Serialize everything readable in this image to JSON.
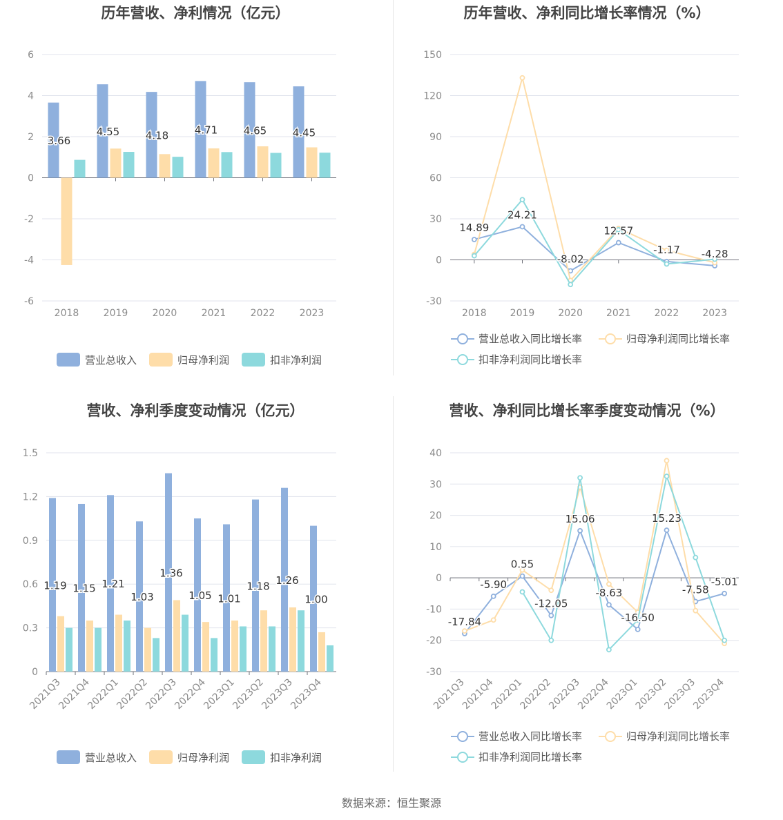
{
  "chart_data": [
    {
      "type": "bar",
      "title": "历年营收、净利情况（亿元）",
      "unit": "亿元",
      "categories": [
        "2018",
        "2019",
        "2020",
        "2021",
        "2022",
        "2023"
      ],
      "ylim": [
        -6,
        6
      ],
      "yticks": [
        -6,
        -4,
        -2,
        0,
        2,
        4,
        6
      ],
      "grid": true,
      "legend_position": "bottom",
      "series": [
        {
          "name": "营业总收入",
          "color": "#8fb0dd",
          "labeled": true,
          "values": [
            3.66,
            4.55,
            4.18,
            4.71,
            4.65,
            4.45
          ]
        },
        {
          "name": "归母净利润",
          "color": "#fedda9",
          "labeled": false,
          "values": [
            -4.25,
            1.42,
            1.15,
            1.43,
            1.53,
            1.48
          ]
        },
        {
          "name": "扣非净利润",
          "color": "#8dd9dd",
          "labeled": false,
          "values": [
            0.87,
            1.26,
            1.02,
            1.25,
            1.21,
            1.22
          ]
        }
      ],
      "data_labels": [
        "3.66",
        "4.55",
        "4.18",
        "4.71",
        "4.65",
        "4.45"
      ]
    },
    {
      "type": "line",
      "title": "历年营收、净利同比增长率情况（%）",
      "unit": "%",
      "categories": [
        "2018",
        "2019",
        "2020",
        "2021",
        "2022",
        "2023"
      ],
      "ylim": [
        -30,
        150
      ],
      "yticks": [
        -30,
        0,
        30,
        60,
        90,
        120,
        150
      ],
      "grid": true,
      "legend_position": "bottom",
      "series": [
        {
          "name": "营业总收入同比增长率",
          "color": "#8fb0dd",
          "labeled": true,
          "values": [
            14.89,
            24.21,
            -8.02,
            12.57,
            -1.17,
            -4.28
          ]
        },
        {
          "name": "归母净利润同比增长率",
          "color": "#fedda9",
          "labeled": false,
          "values": [
            4.0,
            133.0,
            -15.0,
            23.0,
            7.0,
            -2.0
          ]
        },
        {
          "name": "扣非净利润同比增长率",
          "color": "#8dd9dd",
          "labeled": false,
          "values": [
            3.0,
            44.0,
            -18.0,
            22.0,
            -3.0,
            0.5
          ]
        }
      ],
      "data_labels": [
        "14.89",
        "24.21",
        "-8.02",
        "12.57",
        "-1.17",
        "-4.28"
      ]
    },
    {
      "type": "bar",
      "title": "营收、净利季度变动情况（亿元）",
      "unit": "亿元",
      "categories": [
        "2021Q3",
        "2021Q4",
        "2022Q1",
        "2022Q2",
        "2022Q3",
        "2022Q4",
        "2023Q1",
        "2023Q2",
        "2023Q3",
        "2023Q4"
      ],
      "ylim": [
        0,
        1.5
      ],
      "yticks": [
        "0",
        "0.3",
        "0.6",
        "0.9",
        "1.2",
        "1.5"
      ],
      "grid": true,
      "legend_position": "bottom",
      "series": [
        {
          "name": "营业总收入",
          "color": "#8fb0dd",
          "labeled": true,
          "values": [
            1.19,
            1.15,
            1.21,
            1.03,
            1.36,
            1.05,
            1.01,
            1.18,
            1.26,
            1.0
          ]
        },
        {
          "name": "归母净利润",
          "color": "#fedda9",
          "labeled": false,
          "values": [
            0.38,
            0.35,
            0.39,
            0.3,
            0.49,
            0.34,
            0.35,
            0.42,
            0.44,
            0.27
          ]
        },
        {
          "name": "扣非净利润",
          "color": "#8dd9dd",
          "labeled": false,
          "values": [
            0.3,
            0.3,
            0.35,
            0.23,
            0.39,
            0.23,
            0.31,
            0.31,
            0.42,
            0.18
          ]
        }
      ],
      "data_labels": [
        "1.19",
        "1.15",
        "1.21",
        "1.03",
        "1.36",
        "1.05",
        "1.01",
        "1.18",
        "1.26",
        "1.00"
      ]
    },
    {
      "type": "line",
      "title": "营收、净利同比增长率季度变动情况（%）",
      "unit": "%",
      "categories": [
        "2021Q3",
        "2021Q4",
        "2022Q1",
        "2022Q2",
        "2022Q3",
        "2022Q4",
        "2023Q1",
        "2023Q2",
        "2023Q3",
        "2023Q4"
      ],
      "ylim": [
        -30,
        40
      ],
      "yticks": [
        -30,
        -20,
        -10,
        0,
        10,
        20,
        30,
        40
      ],
      "grid": true,
      "legend_position": "bottom",
      "series": [
        {
          "name": "营业总收入同比增长率",
          "color": "#8fb0dd",
          "labeled": true,
          "values": [
            -17.84,
            -5.9,
            0.55,
            -12.05,
            15.06,
            -8.63,
            -16.5,
            15.23,
            -7.58,
            -5.01
          ]
        },
        {
          "name": "归母净利润同比增长率",
          "color": "#fedda9",
          "labeled": false,
          "values": [
            -17.0,
            -13.5,
            2.5,
            -4.0,
            29.0,
            -2.0,
            -11.0,
            37.5,
            -10.5,
            -21.0
          ]
        },
        {
          "name": "扣非净利润同比增长率",
          "color": "#8dd9dd",
          "labeled": false,
          "values": [
            null,
            null,
            -4.5,
            -20.0,
            32.0,
            -23.0,
            -13.5,
            32.5,
            6.5,
            -20.0
          ]
        }
      ],
      "data_labels": [
        "-17.84",
        "-5.90",
        "0.55",
        "-12.05",
        "15.06",
        "-8.63",
        "-16.50",
        "15.23",
        "-7.58",
        "-5.01"
      ]
    }
  ],
  "footer": "数据来源：恒生聚源"
}
